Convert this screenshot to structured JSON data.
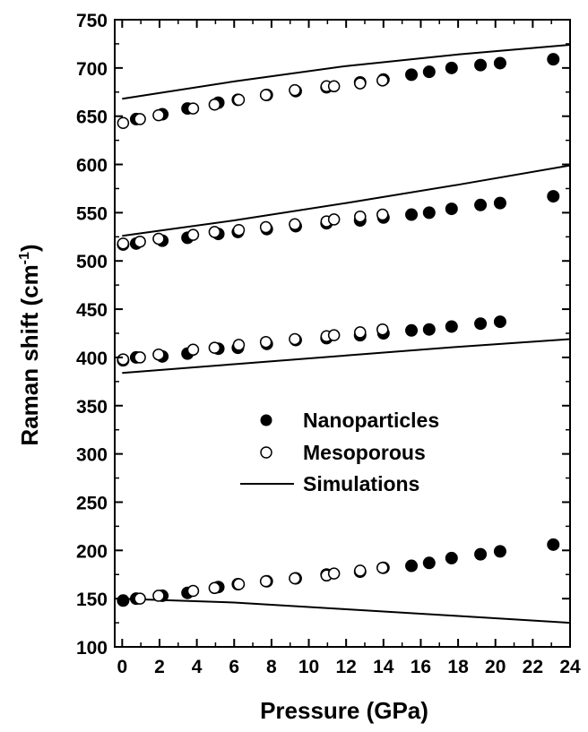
{
  "chart_data": {
    "type": "scatter",
    "xlabel": "Pressure (GPa)",
    "ylabel_main": "Raman shift (cm",
    "ylabel_sup": "-1",
    "ylabel_close": ")",
    "xlim": [
      -0.4,
      24
    ],
    "ylim": [
      100,
      750
    ],
    "xticks": [
      0,
      2,
      4,
      6,
      8,
      10,
      12,
      14,
      16,
      18,
      20,
      22,
      24
    ],
    "yticks": [
      100,
      150,
      200,
      250,
      300,
      350,
      400,
      450,
      500,
      550,
      600,
      650,
      700,
      750
    ],
    "legend_position": "center",
    "series": [
      {
        "name": "Nanoparticles",
        "marker": "filled-circle",
        "color": "#000000",
        "points": [
          [
            0.05,
            148
          ],
          [
            0.75,
            150
          ],
          [
            2.15,
            153
          ],
          [
            3.5,
            156
          ],
          [
            5.15,
            162
          ],
          [
            6.2,
            165
          ],
          [
            7.75,
            168
          ],
          [
            9.3,
            171
          ],
          [
            10.95,
            175
          ],
          [
            12.75,
            178
          ],
          [
            14.0,
            182
          ],
          [
            15.5,
            184
          ],
          [
            16.45,
            187
          ],
          [
            17.65,
            192
          ],
          [
            19.2,
            196
          ],
          [
            20.25,
            199
          ],
          [
            23.1,
            206
          ],
          [
            0.05,
            397
          ],
          [
            0.75,
            400
          ],
          [
            2.15,
            401
          ],
          [
            3.5,
            404
          ],
          [
            5.15,
            409
          ],
          [
            6.2,
            410
          ],
          [
            7.75,
            414
          ],
          [
            9.3,
            418
          ],
          [
            10.95,
            420
          ],
          [
            12.75,
            423
          ],
          [
            14.0,
            425
          ],
          [
            15.5,
            428
          ],
          [
            16.45,
            429
          ],
          [
            17.65,
            432
          ],
          [
            19.2,
            435
          ],
          [
            20.25,
            437
          ],
          [
            0.05,
            517
          ],
          [
            0.75,
            518
          ],
          [
            2.15,
            521
          ],
          [
            3.5,
            524
          ],
          [
            5.15,
            528
          ],
          [
            6.2,
            530
          ],
          [
            7.75,
            533
          ],
          [
            9.3,
            536
          ],
          [
            10.95,
            539
          ],
          [
            12.75,
            542
          ],
          [
            14.0,
            545
          ],
          [
            15.5,
            548
          ],
          [
            16.45,
            550
          ],
          [
            17.65,
            554
          ],
          [
            19.2,
            558
          ],
          [
            20.25,
            560
          ],
          [
            23.1,
            567
          ],
          [
            0.75,
            647
          ],
          [
            2.15,
            652
          ],
          [
            3.5,
            658
          ],
          [
            5.15,
            664
          ],
          [
            6.2,
            667
          ],
          [
            7.75,
            672
          ],
          [
            9.3,
            676
          ],
          [
            10.95,
            680
          ],
          [
            12.75,
            685
          ],
          [
            14.0,
            688
          ],
          [
            15.5,
            693
          ],
          [
            16.45,
            696
          ],
          [
            17.65,
            700
          ],
          [
            19.2,
            703
          ],
          [
            20.25,
            705
          ],
          [
            23.1,
            709
          ]
        ]
      },
      {
        "name": "Mesoporous",
        "marker": "open-circle",
        "color": "#000000",
        "points": [
          [
            0.95,
            150
          ],
          [
            1.95,
            153
          ],
          [
            3.8,
            158
          ],
          [
            4.95,
            161
          ],
          [
            6.25,
            165
          ],
          [
            7.7,
            168
          ],
          [
            9.25,
            171
          ],
          [
            10.95,
            174
          ],
          [
            11.35,
            176
          ],
          [
            12.75,
            179
          ],
          [
            13.95,
            182
          ],
          [
            0.05,
            398
          ],
          [
            0.95,
            400
          ],
          [
            1.95,
            403
          ],
          [
            3.8,
            408
          ],
          [
            4.95,
            410
          ],
          [
            6.25,
            413
          ],
          [
            7.7,
            416
          ],
          [
            9.25,
            419
          ],
          [
            10.95,
            422
          ],
          [
            11.35,
            423
          ],
          [
            12.75,
            426
          ],
          [
            13.95,
            429
          ],
          [
            0.05,
            518
          ],
          [
            0.95,
            520
          ],
          [
            1.95,
            523
          ],
          [
            3.8,
            527
          ],
          [
            4.95,
            530
          ],
          [
            6.25,
            532
          ],
          [
            7.7,
            535
          ],
          [
            9.25,
            538
          ],
          [
            10.95,
            541
          ],
          [
            11.35,
            543
          ],
          [
            12.75,
            546
          ],
          [
            13.95,
            548
          ],
          [
            0.05,
            643
          ],
          [
            0.95,
            647
          ],
          [
            1.95,
            651
          ],
          [
            3.8,
            658
          ],
          [
            4.95,
            662
          ],
          [
            6.25,
            667
          ],
          [
            7.7,
            672
          ],
          [
            9.25,
            677
          ],
          [
            10.95,
            681
          ],
          [
            11.35,
            681
          ],
          [
            12.75,
            684
          ],
          [
            13.95,
            687
          ]
        ]
      },
      {
        "name": "Simulations",
        "marker": "line",
        "color": "#000000",
        "lines": [
          [
            [
              0,
              150
            ],
            [
              6,
              146
            ],
            [
              12,
              139
            ],
            [
              18,
              132
            ],
            [
              24,
              125
            ]
          ],
          [
            [
              0,
              384
            ],
            [
              6,
              393
            ],
            [
              12,
              402
            ],
            [
              18,
              411
            ],
            [
              24,
              419
            ]
          ],
          [
            [
              0,
              526
            ],
            [
              6,
              542
            ],
            [
              12,
              560
            ],
            [
              18,
              579
            ],
            [
              24,
              599
            ]
          ],
          [
            [
              0,
              668
            ],
            [
              6,
              686
            ],
            [
              12,
              702
            ],
            [
              18,
              714
            ],
            [
              24,
              724
            ]
          ]
        ]
      }
    ]
  }
}
